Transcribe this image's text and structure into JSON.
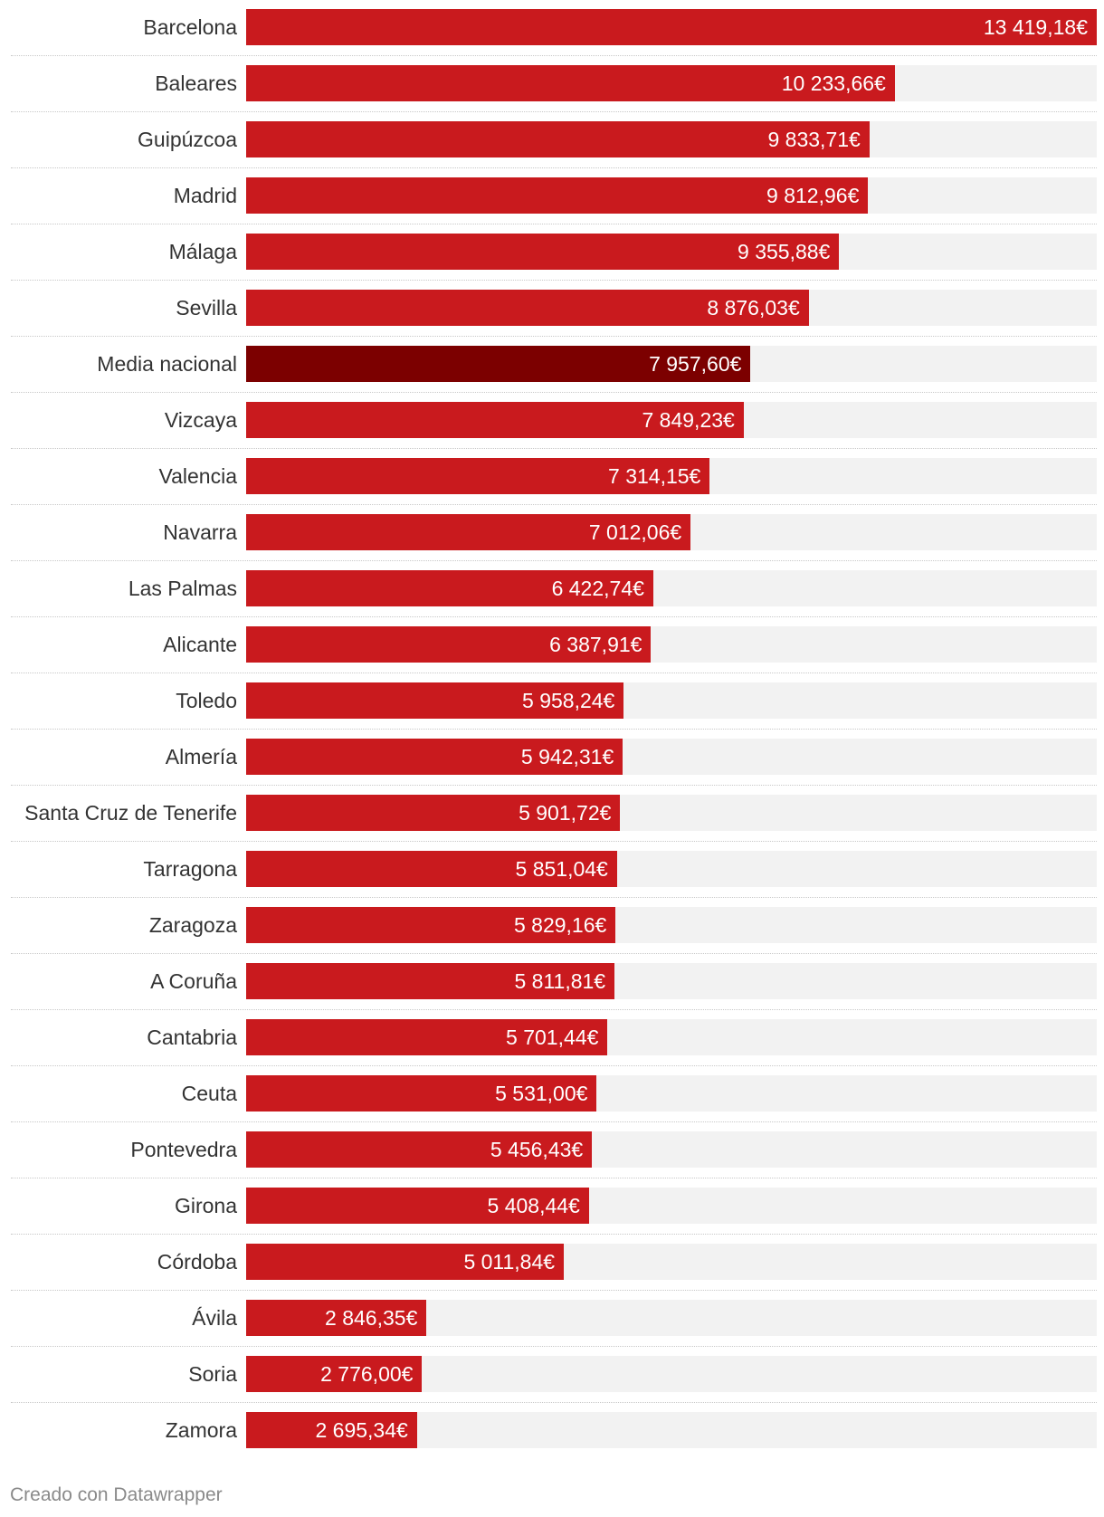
{
  "chart_data": {
    "type": "bar",
    "orientation": "horizontal",
    "categories": [
      "Barcelona",
      "Baleares",
      "Guipúzcoa",
      "Madrid",
      "Málaga",
      "Sevilla",
      "Media nacional",
      "Vizcaya",
      "Valencia",
      "Navarra",
      "Las Palmas",
      "Alicante",
      "Toledo",
      "Almería",
      "Santa Cruz de Tenerife",
      "Tarragona",
      "Zaragoza",
      "A Coruña",
      "Cantabria",
      "Ceuta",
      "Pontevedra",
      "Girona",
      "Córdoba",
      "Ávila",
      "Soria",
      "Zamora"
    ],
    "values": [
      13419.18,
      10233.66,
      9833.71,
      9812.96,
      9355.88,
      8876.03,
      7957.6,
      7849.23,
      7314.15,
      7012.06,
      6422.74,
      6387.91,
      5958.24,
      5942.31,
      5901.72,
      5851.04,
      5829.16,
      5811.81,
      5701.44,
      5531.0,
      5456.43,
      5408.44,
      5011.84,
      2846.35,
      2776.0,
      2695.34
    ],
    "value_labels": [
      "13 419,18€",
      "10 233,66€",
      "9 833,71€",
      "9 812,96€",
      "9 355,88€",
      "8 876,03€",
      "7 957,60€",
      "7 849,23€",
      "7 314,15€",
      "7 012,06€",
      "6 422,74€",
      "6 387,91€",
      "5 958,24€",
      "5 942,31€",
      "5 901,72€",
      "5 851,04€",
      "5 829,16€",
      "5 811,81€",
      "5 701,44€",
      "5 531,00€",
      "5 456,43€",
      "5 408,44€",
      "5 011,84€",
      "2 846,35€",
      "2 776,00€",
      "2 695,34€"
    ],
    "highlight_category": "Media nacional",
    "xlim": [
      0,
      13419.18
    ],
    "grid": false,
    "colors": {
      "bar": "#c91a1e",
      "highlight": "#7c0000",
      "track": "#f2f2f2"
    }
  },
  "footer": {
    "credit": "Creado con Datawrapper"
  }
}
